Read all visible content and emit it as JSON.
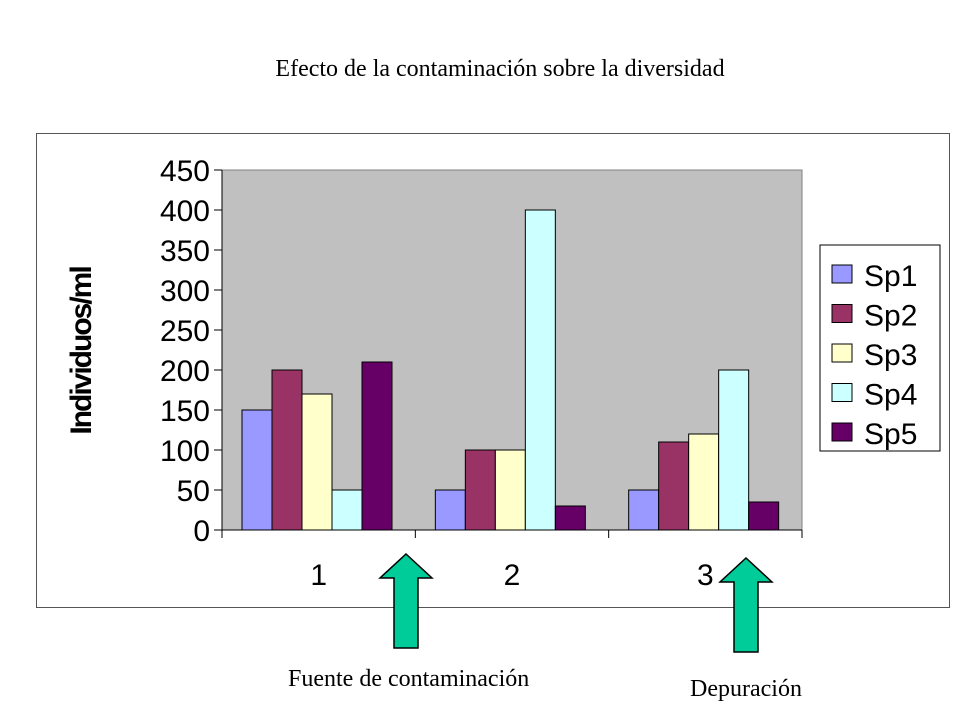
{
  "chart_data": {
    "type": "bar",
    "title": "Efecto de la contaminación sobre la diversidad",
    "xlabel": "",
    "ylabel": "Individuos/ml",
    "categories": [
      "1",
      "2",
      "3"
    ],
    "ylim": [
      0,
      450
    ],
    "yticks": [
      "0",
      "50",
      "100",
      "150",
      "200",
      "250",
      "300",
      "350",
      "400",
      "450"
    ],
    "grid": false,
    "legend_position": "right",
    "series": [
      {
        "name": "Sp1",
        "values": [
          150,
          50,
          50
        ],
        "color": "#9999ff"
      },
      {
        "name": "Sp2",
        "values": [
          200,
          100,
          110
        ],
        "color": "#993366"
      },
      {
        "name": "Sp3",
        "values": [
          170,
          100,
          120
        ],
        "color": "#ffffcc"
      },
      {
        "name": "Sp4",
        "values": [
          50,
          400,
          200
        ],
        "color": "#ccffff"
      },
      {
        "name": "Sp5",
        "values": [
          210,
          30,
          35
        ],
        "color": "#660066"
      }
    ],
    "plot_background": "#c0c0c0"
  },
  "annotations": {
    "source_label": "Fuente de contaminación",
    "depuration_label": "Depuración",
    "arrow_color": "#00cc99"
  }
}
